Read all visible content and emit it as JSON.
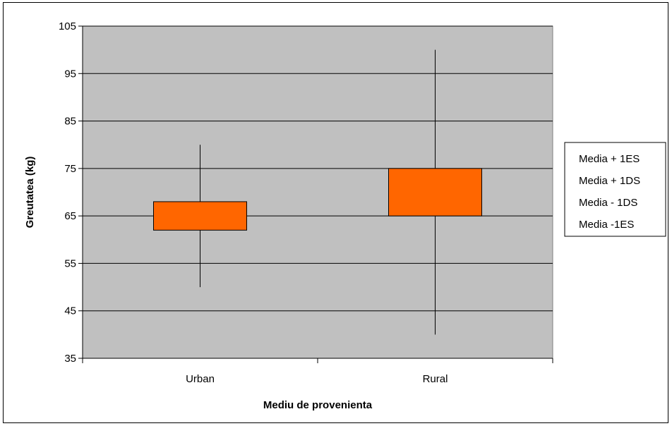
{
  "chart_data": {
    "type": "box",
    "title": "",
    "xlabel": "Mediu de provenienta",
    "ylabel": "Greutatea (kg)",
    "ylim": [
      35,
      105
    ],
    "yticks": [
      35,
      45,
      55,
      65,
      75,
      85,
      95,
      105
    ],
    "grid": true,
    "categories": [
      "Urban",
      "Rural"
    ],
    "series": [
      {
        "name": "Media + 1ES",
        "values": [
          68,
          75
        ]
      },
      {
        "name": "Media + 1DS",
        "values": [
          80,
          100
        ]
      },
      {
        "name": "Media - 1DS",
        "values": [
          50,
          40
        ]
      },
      {
        "name": "Media -1ES",
        "values": [
          62,
          65
        ]
      }
    ],
    "legend_position": "right",
    "colors": {
      "plot_background": "#c0c0c0",
      "box_fill": "#ff6600",
      "box_stroke": "#000000",
      "gridline": "#000000"
    }
  }
}
